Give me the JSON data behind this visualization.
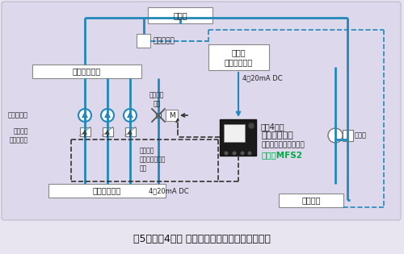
{
  "bg_color": "#ddd8eb",
  "fig_bg": "#e8e4f0",
  "title": "図5　絶縁4出力 アイソレータのシステム構成例",
  "solid_line_color": "#2288bb",
  "dashed_blue_color": "#2288bb",
  "black_dashed_color": "#333333",
  "box_fill": "#ffffff",
  "text_color": "#222222",
  "green_color": "#00aa44",
  "labels": {
    "kuuchouki": "空調機",
    "atsuryoku": "圧力発信器",
    "pump_controller": "ポンプ\nコントローラ",
    "signal_label1": "4～20mA DC",
    "isolator_line1": "絶縁4出力",
    "isolator_line2": "アイソレータ",
    "isolator_line3": "（スプリット演算器）",
    "isolator_model": "形式：MFS2",
    "nijuuheader": "２次往ヘッダ",
    "ichijuuheader": "１次往ヘッダ",
    "kaeheader": "還ヘッダ",
    "nijupump": "２次ポンプ",
    "pump_inverter": "ポンプの\nインバータ",
    "valve_output": "バルブへ\n出力",
    "pump_inv_output": "ポンプの\n各インバータへ\n出力",
    "signal_label2": "4～20mA DC",
    "ryuuryoukei": "流量計"
  }
}
